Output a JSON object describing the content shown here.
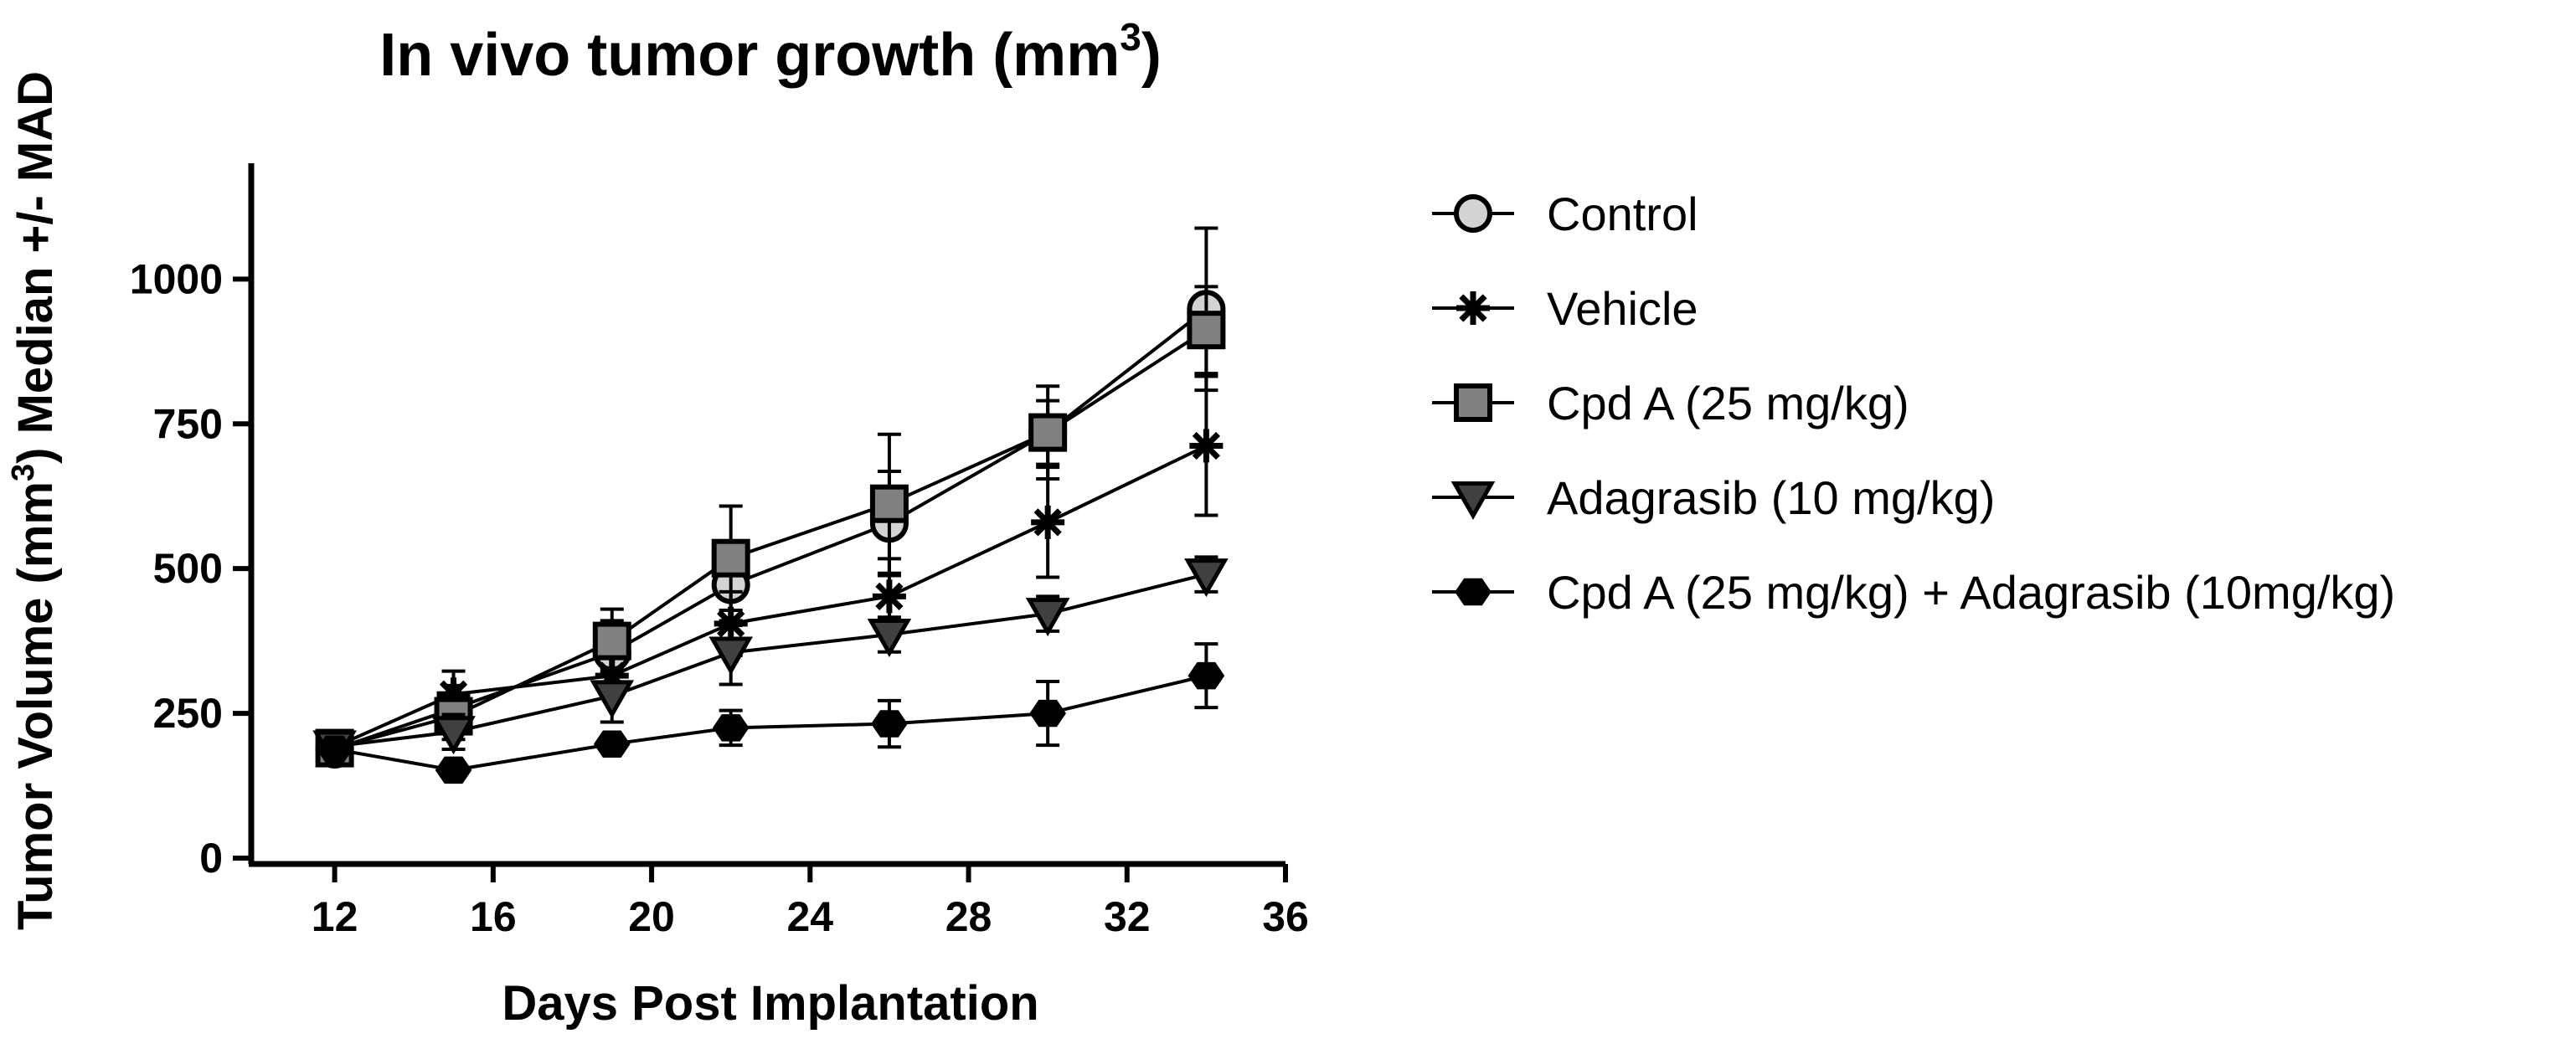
{
  "chart_data": {
    "type": "line",
    "title": "In vivo tumor growth (mm",
    "title_sup": "3",
    "title_end": ")",
    "xlabel": "Days Post Implantation",
    "ylabel_parts": [
      "Tumor Volume (mm",
      "3",
      ") Median +/- MAD"
    ],
    "xlim": [
      10,
      36
    ],
    "ylim": [
      0,
      1200
    ],
    "xticks": [
      12,
      16,
      20,
      24,
      28,
      32,
      36
    ],
    "xtick_labels": [
      "12",
      "16",
      "20",
      "24",
      "28",
      "32",
      "36"
    ],
    "yticks": [
      0,
      250,
      500,
      750,
      1000
    ],
    "ytick_labels": [
      "0",
      "250",
      "500",
      "750",
      "1000"
    ],
    "grid": false,
    "legend_position": "right",
    "x": [
      12,
      15,
      19,
      22,
      26,
      30,
      34
    ],
    "series": [
      {
        "name": "Control",
        "marker": "circle",
        "color": "#d3d3d3",
        "values": [
          188,
          258,
          355,
          472,
          578,
          735,
          948
        ],
        "errors": [
          15,
          40,
          55,
          70,
          90,
          80,
          140
        ]
      },
      {
        "name": "Vehicle",
        "marker": "asterisk",
        "color": "#000000",
        "values": [
          192,
          283,
          315,
          405,
          452,
          580,
          712
        ],
        "errors": [
          15,
          40,
          35,
          55,
          65,
          95,
          120
        ]
      },
      {
        "name": "Cpd A (25 mg/kg)",
        "marker": "square",
        "color": "#808080",
        "values": [
          190,
          245,
          375,
          518,
          612,
          735,
          912
        ],
        "errors": [
          12,
          40,
          55,
          90,
          120,
          55,
          75
        ]
      },
      {
        "name": "Adagrasib (10 mg/kg)",
        "marker": "triangle-down",
        "color": "#404040",
        "values": [
          193,
          218,
          280,
          355,
          386,
          422,
          490
        ],
        "errors": [
          12,
          30,
          45,
          55,
          30,
          30,
          30
        ]
      },
      {
        "name": "Cpd A (25 mg/kg) + Adagrasib (10mg/kg)",
        "marker": "hexagon",
        "color": "#000000",
        "values": [
          188,
          152,
          197,
          225,
          232,
          250,
          315
        ],
        "errors": [
          10,
          10,
          10,
          30,
          40,
          55,
          55
        ]
      }
    ]
  }
}
